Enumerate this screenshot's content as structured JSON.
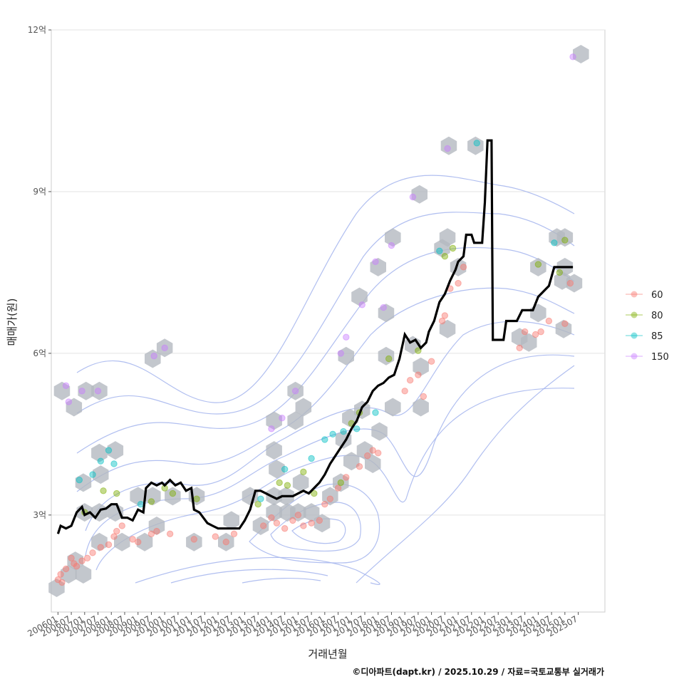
{
  "chart_data": {
    "type": "line",
    "title": "",
    "xlabel": "거래년월",
    "ylabel": "매매가(원)",
    "caption": "©디아파트(dapt.kr) / 2025.10.29 / 자료=국토교통부 실거래가",
    "ylim": [
      1.2,
      12.0
    ],
    "y_ticks": [
      {
        "value": 3,
        "label": "3억"
      },
      {
        "value": 6,
        "label": "6억"
      },
      {
        "value": 9,
        "label": "9억"
      },
      {
        "value": 12,
        "label": "12억"
      }
    ],
    "x_range": [
      2005.75,
      2026.5
    ],
    "x_ticks": [
      "200601",
      "200607",
      "200701",
      "200707",
      "200801",
      "200807",
      "200901",
      "200907",
      "201001",
      "201007",
      "201101",
      "201107",
      "201201",
      "201207",
      "201301",
      "201307",
      "201401",
      "201407",
      "201501",
      "201507",
      "201601",
      "201607",
      "201701",
      "201707",
      "201801",
      "201807",
      "201901",
      "201907",
      "202001",
      "202007",
      "202101",
      "202107",
      "202201",
      "202207",
      "202301",
      "202307",
      "202401",
      "202407",
      "202501",
      "202507"
    ],
    "legend": {
      "position": "right",
      "entries": [
        {
          "label": "60",
          "color": "#F8766D"
        },
        {
          "label": "80",
          "color": "#7CAE00"
        },
        {
          "label": "85",
          "color": "#00BFC4"
        },
        {
          "label": "150",
          "color": "#C77CFF"
        }
      ]
    },
    "series": [
      {
        "name": "moving-median",
        "color": "#000000",
        "points": [
          [
            2006.0,
            2.65
          ],
          [
            2006.1,
            2.8
          ],
          [
            2006.3,
            2.75
          ],
          [
            2006.5,
            2.8
          ],
          [
            2006.7,
            3.05
          ],
          [
            2006.9,
            3.15
          ],
          [
            2007.0,
            3.0
          ],
          [
            2007.2,
            3.05
          ],
          [
            2007.4,
            2.95
          ],
          [
            2007.6,
            3.1
          ],
          [
            2007.8,
            3.12
          ],
          [
            2008.0,
            3.2
          ],
          [
            2008.2,
            3.2
          ],
          [
            2008.4,
            2.95
          ],
          [
            2008.6,
            2.95
          ],
          [
            2008.8,
            2.9
          ],
          [
            2009.0,
            3.1
          ],
          [
            2009.2,
            3.05
          ],
          [
            2009.3,
            3.5
          ],
          [
            2009.5,
            3.6
          ],
          [
            2009.7,
            3.55
          ],
          [
            2009.9,
            3.6
          ],
          [
            2010.0,
            3.55
          ],
          [
            2010.2,
            3.65
          ],
          [
            2010.4,
            3.55
          ],
          [
            2010.6,
            3.6
          ],
          [
            2010.8,
            3.45
          ],
          [
            2011.0,
            3.5
          ],
          [
            2011.1,
            3.1
          ],
          [
            2011.3,
            3.05
          ],
          [
            2011.6,
            2.85
          ],
          [
            2011.8,
            2.8
          ],
          [
            2012.0,
            2.75
          ],
          [
            2012.3,
            2.75
          ],
          [
            2012.6,
            2.75
          ],
          [
            2012.8,
            2.75
          ],
          [
            2013.0,
            2.9
          ],
          [
            2013.2,
            3.1
          ],
          [
            2013.4,
            3.45
          ],
          [
            2013.6,
            3.45
          ],
          [
            2013.8,
            3.4
          ],
          [
            2014.0,
            3.35
          ],
          [
            2014.2,
            3.3
          ],
          [
            2014.4,
            3.35
          ],
          [
            2014.6,
            3.35
          ],
          [
            2014.8,
            3.35
          ],
          [
            2015.0,
            3.4
          ],
          [
            2015.2,
            3.45
          ],
          [
            2015.4,
            3.4
          ],
          [
            2015.6,
            3.5
          ],
          [
            2015.8,
            3.6
          ],
          [
            2016.0,
            3.75
          ],
          [
            2016.2,
            3.95
          ],
          [
            2016.4,
            4.1
          ],
          [
            2016.6,
            4.25
          ],
          [
            2016.8,
            4.4
          ],
          [
            2017.0,
            4.6
          ],
          [
            2017.2,
            4.75
          ],
          [
            2017.4,
            5.0
          ],
          [
            2017.6,
            5.1
          ],
          [
            2017.8,
            5.3
          ],
          [
            2018.0,
            5.4
          ],
          [
            2018.2,
            5.45
          ],
          [
            2018.4,
            5.55
          ],
          [
            2018.6,
            5.6
          ],
          [
            2018.8,
            5.9
          ],
          [
            2019.0,
            6.35
          ],
          [
            2019.2,
            6.2
          ],
          [
            2019.4,
            6.25
          ],
          [
            2019.6,
            6.1
          ],
          [
            2019.8,
            6.2
          ],
          [
            2019.9,
            6.4
          ],
          [
            2020.1,
            6.6
          ],
          [
            2020.3,
            6.95
          ],
          [
            2020.5,
            7.1
          ],
          [
            2020.7,
            7.35
          ],
          [
            2020.9,
            7.55
          ],
          [
            2021.0,
            7.7
          ],
          [
            2021.2,
            7.8
          ],
          [
            2021.3,
            8.2
          ],
          [
            2021.5,
            8.2
          ],
          [
            2021.6,
            8.05
          ],
          [
            2021.9,
            8.05
          ],
          [
            2022.0,
            8.8
          ],
          [
            2022.1,
            9.95
          ],
          [
            2022.25,
            9.95
          ],
          [
            2022.3,
            6.25
          ],
          [
            2022.7,
            6.25
          ],
          [
            2022.8,
            6.6
          ],
          [
            2023.2,
            6.6
          ],
          [
            2023.4,
            6.8
          ],
          [
            2023.8,
            6.8
          ],
          [
            2024.0,
            7.05
          ],
          [
            2024.2,
            7.15
          ],
          [
            2024.4,
            7.25
          ],
          [
            2024.6,
            7.6
          ],
          [
            2024.9,
            7.6
          ],
          [
            2025.0,
            7.6
          ],
          [
            2025.3,
            7.6
          ]
        ]
      }
    ],
    "scatter": [
      {
        "name": "60",
        "color": "#F8766D",
        "points": [
          [
            2006.0,
            1.8
          ],
          [
            2006.1,
            1.9
          ],
          [
            2006.15,
            1.75
          ],
          [
            2006.3,
            2.0
          ],
          [
            2006.5,
            2.2
          ],
          [
            2006.6,
            2.1
          ],
          [
            2006.7,
            2.05
          ],
          [
            2006.9,
            2.15
          ],
          [
            2007.1,
            2.2
          ],
          [
            2007.3,
            2.3
          ],
          [
            2007.6,
            2.4
          ],
          [
            2007.9,
            2.45
          ],
          [
            2008.1,
            2.6
          ],
          [
            2008.2,
            2.7
          ],
          [
            2008.4,
            2.8
          ],
          [
            2008.8,
            2.55
          ],
          [
            2009.0,
            2.5
          ],
          [
            2009.5,
            2.65
          ],
          [
            2009.7,
            2.7
          ],
          [
            2010.2,
            2.65
          ],
          [
            2011.1,
            2.55
          ],
          [
            2011.9,
            2.6
          ],
          [
            2012.3,
            2.5
          ],
          [
            2012.6,
            2.65
          ],
          [
            2013.7,
            2.8
          ],
          [
            2014.0,
            2.95
          ],
          [
            2014.2,
            2.85
          ],
          [
            2014.5,
            2.75
          ],
          [
            2014.8,
            2.9
          ],
          [
            2015.0,
            3.0
          ],
          [
            2015.2,
            2.8
          ],
          [
            2015.5,
            2.85
          ],
          [
            2015.8,
            2.9
          ],
          [
            2016.0,
            3.2
          ],
          [
            2016.2,
            3.3
          ],
          [
            2016.5,
            3.5
          ],
          [
            2016.8,
            3.7
          ],
          [
            2017.3,
            3.9
          ],
          [
            2017.6,
            4.1
          ],
          [
            2017.8,
            4.2
          ],
          [
            2018.0,
            4.15
          ],
          [
            2019.0,
            5.3
          ],
          [
            2019.2,
            5.5
          ],
          [
            2019.5,
            5.6
          ],
          [
            2019.7,
            5.2
          ],
          [
            2020.0,
            5.85
          ],
          [
            2020.4,
            6.6
          ],
          [
            2020.5,
            6.7
          ],
          [
            2020.7,
            7.2
          ],
          [
            2021.0,
            7.3
          ],
          [
            2021.2,
            7.6
          ],
          [
            2023.3,
            6.1
          ],
          [
            2023.5,
            6.4
          ],
          [
            2023.9,
            6.35
          ],
          [
            2024.1,
            6.4
          ],
          [
            2024.4,
            6.6
          ],
          [
            2025.0,
            6.55
          ],
          [
            2025.2,
            7.3
          ]
        ]
      },
      {
        "name": "80",
        "color": "#7CAE00",
        "points": [
          [
            2007.0,
            3.05
          ],
          [
            2007.7,
            3.45
          ],
          [
            2008.2,
            3.4
          ],
          [
            2009.5,
            3.25
          ],
          [
            2010.0,
            3.5
          ],
          [
            2010.3,
            3.4
          ],
          [
            2011.2,
            3.3
          ],
          [
            2013.5,
            3.2
          ],
          [
            2014.3,
            3.6
          ],
          [
            2014.6,
            3.55
          ],
          [
            2015.2,
            3.8
          ],
          [
            2015.6,
            3.4
          ],
          [
            2016.6,
            3.6
          ],
          [
            2017.0,
            4.7
          ],
          [
            2017.3,
            4.9
          ],
          [
            2018.4,
            5.9
          ],
          [
            2019.5,
            6.05
          ],
          [
            2020.5,
            7.8
          ],
          [
            2020.8,
            7.95
          ],
          [
            2024.0,
            7.65
          ],
          [
            2024.8,
            7.5
          ],
          [
            2025.0,
            8.1
          ]
        ]
      },
      {
        "name": "85",
        "color": "#00BFC4",
        "points": [
          [
            2006.8,
            3.65
          ],
          [
            2007.3,
            3.75
          ],
          [
            2007.6,
            4.0
          ],
          [
            2007.9,
            4.2
          ],
          [
            2008.1,
            3.95
          ],
          [
            2009.1,
            3.2
          ],
          [
            2013.6,
            3.3
          ],
          [
            2014.5,
            3.85
          ],
          [
            2015.5,
            4.05
          ],
          [
            2016.0,
            4.4
          ],
          [
            2016.3,
            4.5
          ],
          [
            2016.7,
            4.55
          ],
          [
            2017.2,
            4.6
          ],
          [
            2017.9,
            4.9
          ],
          [
            2020.3,
            7.9
          ],
          [
            2021.7,
            9.9
          ],
          [
            2024.6,
            8.05
          ]
        ]
      },
      {
        "name": "150",
        "color": "#C77CFF",
        "points": [
          [
            2006.3,
            5.4
          ],
          [
            2006.4,
            5.1
          ],
          [
            2006.9,
            5.3
          ],
          [
            2007.5,
            5.3
          ],
          [
            2009.6,
            5.95
          ],
          [
            2010.0,
            6.1
          ],
          [
            2014.0,
            4.6
          ],
          [
            2014.4,
            4.8
          ],
          [
            2014.9,
            5.3
          ],
          [
            2016.6,
            6.0
          ],
          [
            2016.8,
            6.3
          ],
          [
            2017.4,
            6.9
          ],
          [
            2017.9,
            7.7
          ],
          [
            2018.2,
            6.85
          ],
          [
            2018.5,
            8.0
          ],
          [
            2019.3,
            8.9
          ],
          [
            2020.6,
            9.8
          ],
          [
            2025.3,
            11.5
          ]
        ]
      }
    ],
    "hexbins": [
      [
        2005.95,
        1.65
      ],
      [
        2006.4,
        1.9
      ],
      [
        2006.95,
        1.9
      ],
      [
        2006.65,
        2.15
      ],
      [
        2007.55,
        2.5
      ],
      [
        2008.4,
        2.5
      ],
      [
        2009.25,
        2.5
      ],
      [
        2009.7,
        2.8
      ],
      [
        2011.1,
        2.5
      ],
      [
        2012.3,
        2.5
      ],
      [
        2012.5,
        2.9
      ],
      [
        2013.6,
        2.8
      ],
      [
        2014.1,
        3.05
      ],
      [
        2014.6,
        3.05
      ],
      [
        2015.0,
        3.05
      ],
      [
        2015.5,
        3.05
      ],
      [
        2015.9,
        2.85
      ],
      [
        2016.2,
        3.35
      ],
      [
        2016.6,
        3.6
      ],
      [
        2017.0,
        4.0
      ],
      [
        2017.5,
        4.2
      ],
      [
        2017.8,
        3.95
      ],
      [
        2018.05,
        4.55
      ],
      [
        2007.0,
        3.05
      ],
      [
        2007.55,
        3.05
      ],
      [
        2008.15,
        3.05
      ],
      [
        2009.0,
        3.35
      ],
      [
        2009.55,
        3.35
      ],
      [
        2010.3,
        3.35
      ],
      [
        2011.2,
        3.35
      ],
      [
        2013.2,
        3.35
      ],
      [
        2014.1,
        3.35
      ],
      [
        2014.55,
        3.35
      ],
      [
        2015.1,
        3.6
      ],
      [
        2014.2,
        3.85
      ],
      [
        2006.95,
        3.6
      ],
      [
        2007.6,
        3.75
      ],
      [
        2007.55,
        4.15
      ],
      [
        2008.15,
        4.2
      ],
      [
        2014.1,
        4.2
      ],
      [
        2016.7,
        4.4
      ],
      [
        2016.95,
        4.8
      ],
      [
        2017.4,
        4.95
      ],
      [
        2014.1,
        4.75
      ],
      [
        2014.9,
        4.75
      ],
      [
        2015.2,
        5.0
      ],
      [
        2014.9,
        5.3
      ],
      [
        2006.15,
        5.3
      ],
      [
        2006.6,
        5.0
      ],
      [
        2007.05,
        5.3
      ],
      [
        2007.55,
        5.3
      ],
      [
        2018.55,
        5.0
      ],
      [
        2019.6,
        5.0
      ],
      [
        2016.8,
        5.95
      ],
      [
        2018.3,
        5.95
      ],
      [
        2019.3,
        6.15
      ],
      [
        2020.6,
        6.45
      ],
      [
        2019.6,
        5.75
      ],
      [
        2009.55,
        5.9
      ],
      [
        2010.0,
        6.1
      ],
      [
        2017.3,
        7.05
      ],
      [
        2018.0,
        7.6
      ],
      [
        2018.3,
        6.75
      ],
      [
        2018.55,
        8.15
      ],
      [
        2019.55,
        8.95
      ],
      [
        2020.4,
        7.95
      ],
      [
        2020.6,
        8.15
      ],
      [
        2021.0,
        7.6
      ],
      [
        2020.65,
        9.85
      ],
      [
        2021.65,
        9.85
      ],
      [
        2023.3,
        6.3
      ],
      [
        2023.65,
        6.2
      ],
      [
        2024.0,
        6.75
      ],
      [
        2024.0,
        7.6
      ],
      [
        2024.7,
        8.15
      ],
      [
        2025.0,
        8.15
      ],
      [
        2025.0,
        7.6
      ],
      [
        2024.9,
        7.35
      ],
      [
        2025.35,
        7.3
      ],
      [
        2024.95,
        6.45
      ],
      [
        2025.6,
        11.55
      ]
    ]
  }
}
